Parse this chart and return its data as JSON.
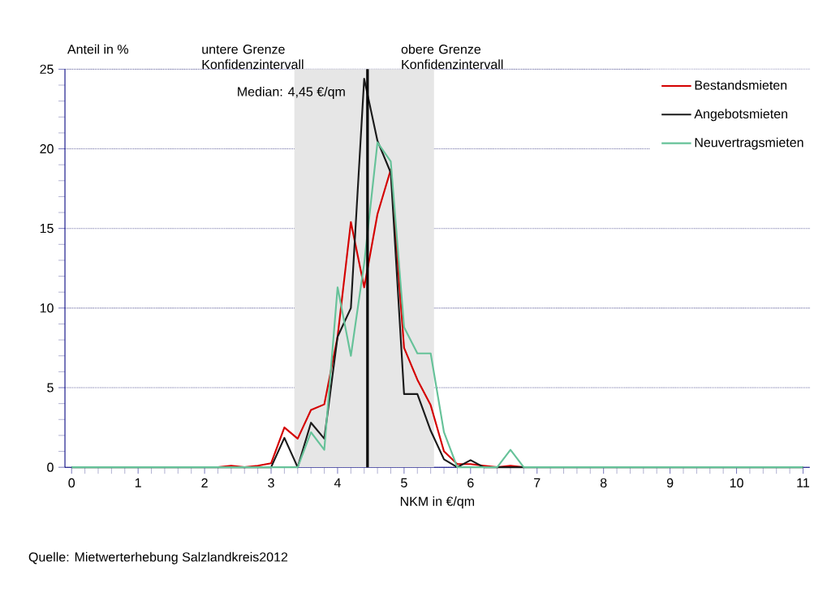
{
  "chart_data": {
    "type": "line",
    "xlabel": "NKM in €/qm",
    "ylabel": "Anteil in %",
    "x": [
      0,
      0.2,
      0.4,
      0.6,
      0.8,
      1,
      1.2,
      1.4,
      1.6,
      1.8,
      2,
      2.2,
      2.4,
      2.6,
      2.8,
      3,
      3.2,
      3.4,
      3.6,
      3.8,
      4,
      4.2,
      4.4,
      4.6,
      4.8,
      5,
      5.2,
      5.4,
      5.6,
      5.8,
      6,
      6.2,
      6.4,
      6.6,
      6.8,
      7,
      7.2,
      7.4,
      7.6,
      7.8,
      8,
      8.2,
      8.4,
      8.6,
      8.8,
      9,
      9.2,
      9.4,
      9.6,
      9.8,
      10,
      10.2,
      10.4,
      10.6,
      10.8,
      11
    ],
    "series": [
      {
        "name": "Bestandsmieten",
        "color": "#d40000",
        "values": [
          null,
          null,
          null,
          null,
          null,
          null,
          null,
          null,
          null,
          null,
          null,
          0,
          0.1,
          0,
          0.1,
          0.25,
          2.5,
          1.8,
          3.6,
          3.95,
          8.2,
          15.4,
          11.3,
          15.9,
          18.7,
          7.5,
          5.5,
          3.9,
          1.0,
          0.2,
          0.2,
          0.1,
          0,
          0.1,
          0,
          null,
          null,
          null,
          null,
          null,
          null,
          null,
          null,
          null,
          null,
          null,
          null,
          null,
          null,
          null,
          null,
          null,
          null,
          null,
          null,
          null
        ]
      },
      {
        "name": "Angebotsmieten",
        "color": "#1a1a1a",
        "values": [
          0,
          0,
          0,
          0,
          0,
          0,
          0,
          0,
          0,
          0,
          0,
          0,
          0,
          0,
          0,
          0,
          1.85,
          0,
          2.8,
          1.8,
          8.2,
          10.0,
          24.4,
          20.5,
          18.5,
          4.6,
          4.6,
          2.3,
          0.5,
          0,
          0.45,
          0,
          0,
          0,
          0,
          0,
          0,
          0,
          0,
          0,
          0,
          0,
          0,
          0,
          0,
          0,
          0,
          0,
          0,
          0,
          0,
          0,
          0,
          0,
          0,
          0
        ]
      },
      {
        "name": "Neuvertragsmieten",
        "color": "#66c299",
        "values": [
          0,
          0,
          0,
          0,
          0,
          0,
          0,
          0,
          0,
          0,
          0,
          0,
          0,
          0,
          0,
          0,
          0,
          0,
          2.2,
          1.1,
          11.3,
          7.0,
          12.8,
          20.4,
          19.2,
          8.8,
          7.15,
          7.15,
          2.2,
          0,
          0,
          0,
          0,
          1.1,
          0,
          0,
          0,
          0,
          0,
          0,
          0,
          0,
          0,
          0,
          0,
          0,
          0,
          0,
          0,
          0,
          0,
          0,
          0,
          0,
          0,
          0
        ]
      }
    ],
    "xlim": [
      -0.1,
      11.1
    ],
    "ylim": [
      0,
      25
    ],
    "xticks": [
      0,
      1,
      2,
      3,
      4,
      5,
      6,
      7,
      8,
      9,
      10,
      11
    ],
    "yticks": [
      0,
      5,
      10,
      15,
      20,
      25
    ],
    "grid": "y",
    "legend": "top right",
    "marker": "none",
    "ref_lines": [
      {
        "axis": "x",
        "value": 4.45,
        "label": "Median: 4,45 €/qm",
        "color": "#000000"
      }
    ],
    "bands": [
      {
        "axis": "x",
        "from": 3.35,
        "to": 5.45,
        "color": "#e6e6e6"
      }
    ],
    "annotations": [
      "untere Grenze Konfidenzintervall",
      "obere Grenze Konfidenzintervall",
      "Quelle: Mietwerterhebung Salzlandkreis2012"
    ]
  }
}
